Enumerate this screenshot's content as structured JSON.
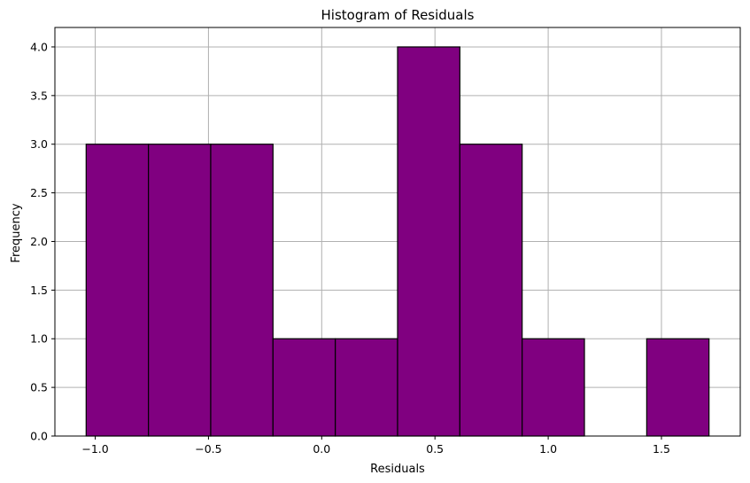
{
  "chart_data": {
    "type": "bar",
    "title": "Histogram of Residuals",
    "xlabel": "Residuals",
    "ylabel": "Frequency",
    "bin_edges": [
      -1.04,
      -0.765,
      -0.49,
      -0.215,
      0.06,
      0.335,
      0.61,
      0.885,
      1.16,
      1.435,
      1.71
    ],
    "values": [
      3,
      3,
      3,
      1,
      1,
      4,
      3,
      1,
      0,
      1
    ],
    "xlim": [
      -1.178,
      1.848
    ],
    "ylim": [
      0,
      4.2
    ],
    "x_ticks": [
      -1.0,
      -0.5,
      0.0,
      0.5,
      1.0,
      1.5
    ],
    "x_tick_labels": [
      "−1.0",
      "−0.5",
      "0.0",
      "0.5",
      "1.0",
      "1.5"
    ],
    "y_ticks": [
      0,
      0.5,
      1,
      1.5,
      2,
      2.5,
      3,
      3.5,
      4
    ],
    "y_tick_labels": [
      "0.0",
      "0.5",
      "1.0",
      "1.5",
      "2.0",
      "2.5",
      "3.0",
      "3.5",
      "4.0"
    ],
    "grid": true,
    "bar_color": "#800080",
    "edge_color": "#000000",
    "grid_color": "#b0b0b0"
  }
}
